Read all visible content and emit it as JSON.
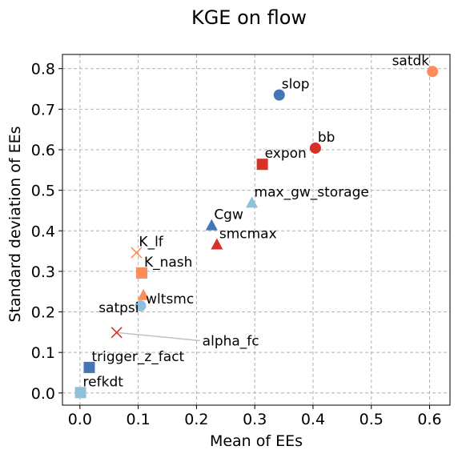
{
  "chart_data": {
    "type": "scatter",
    "title": "KGE on flow",
    "xlabel": "Mean of EEs",
    "ylabel": "Standard deviation of EEs",
    "xlim": [
      -0.03,
      0.635
    ],
    "ylim": [
      -0.03,
      0.835
    ],
    "xticks": [
      "0.0",
      "0.1",
      "0.2",
      "0.3",
      "0.4",
      "0.5",
      "0.6"
    ],
    "xtick_values": [
      0.0,
      0.1,
      0.2,
      0.3,
      0.4,
      0.5,
      0.6
    ],
    "yticks": [
      "0.0",
      "0.1",
      "0.2",
      "0.3",
      "0.4",
      "0.5",
      "0.6",
      "0.7",
      "0.8"
    ],
    "ytick_values": [
      0.0,
      0.1,
      0.2,
      0.3,
      0.4,
      0.5,
      0.6,
      0.7,
      0.8
    ],
    "grid": true,
    "points": [
      {
        "label": "satdk",
        "x": 0.605,
        "y": 0.793,
        "marker": "circle",
        "color": "#fc8d59",
        "label_pos": "above-left"
      },
      {
        "label": "slop",
        "x": 0.342,
        "y": 0.735,
        "marker": "circle",
        "color": "#4575b4",
        "label_pos": "above-right"
      },
      {
        "label": "bb",
        "x": 0.404,
        "y": 0.604,
        "marker": "circle",
        "color": "#d73027",
        "label_pos": "above-right"
      },
      {
        "label": "expon",
        "x": 0.313,
        "y": 0.564,
        "marker": "square",
        "color": "#d73027",
        "label_pos": "above-right"
      },
      {
        "label": "max_gw_storage",
        "x": 0.295,
        "y": 0.469,
        "marker": "triangle",
        "color": "#91bfdb",
        "label_pos": "above-right"
      },
      {
        "label": "Cgw",
        "x": 0.226,
        "y": 0.413,
        "marker": "triangle",
        "color": "#4575b4",
        "label_pos": "above-right"
      },
      {
        "label": "smcmax",
        "x": 0.235,
        "y": 0.366,
        "marker": "triangle",
        "color": "#d73027",
        "label_pos": "above-right"
      },
      {
        "label": "K_lf",
        "x": 0.097,
        "y": 0.346,
        "marker": "x",
        "color": "#fc8d59",
        "label_pos": "above-right"
      },
      {
        "label": "K_nash",
        "x": 0.106,
        "y": 0.296,
        "marker": "square",
        "color": "#fc8d59",
        "label_pos": "above-right"
      },
      {
        "label": "wltsmc",
        "x": 0.109,
        "y": 0.241,
        "marker": "triangle",
        "color": "#fc8d59",
        "label_pos": "below-right"
      },
      {
        "label": "satpsi",
        "x": 0.104,
        "y": 0.215,
        "marker": "circle",
        "color": "#91bfdb",
        "label_pos": "left"
      },
      {
        "label": "alpha_fc",
        "x": 0.063,
        "y": 0.149,
        "marker": "x",
        "color": "#d73027",
        "label_pos": "leader"
      },
      {
        "label": "trigger_z_fact",
        "x": 0.016,
        "y": 0.063,
        "marker": "square",
        "color": "#4575b4",
        "label_pos": "above-right"
      },
      {
        "label": "refkdt",
        "x": 0.001,
        "y": 0.001,
        "marker": "square",
        "color": "#91bfdb",
        "label_pos": "above-right"
      }
    ]
  }
}
